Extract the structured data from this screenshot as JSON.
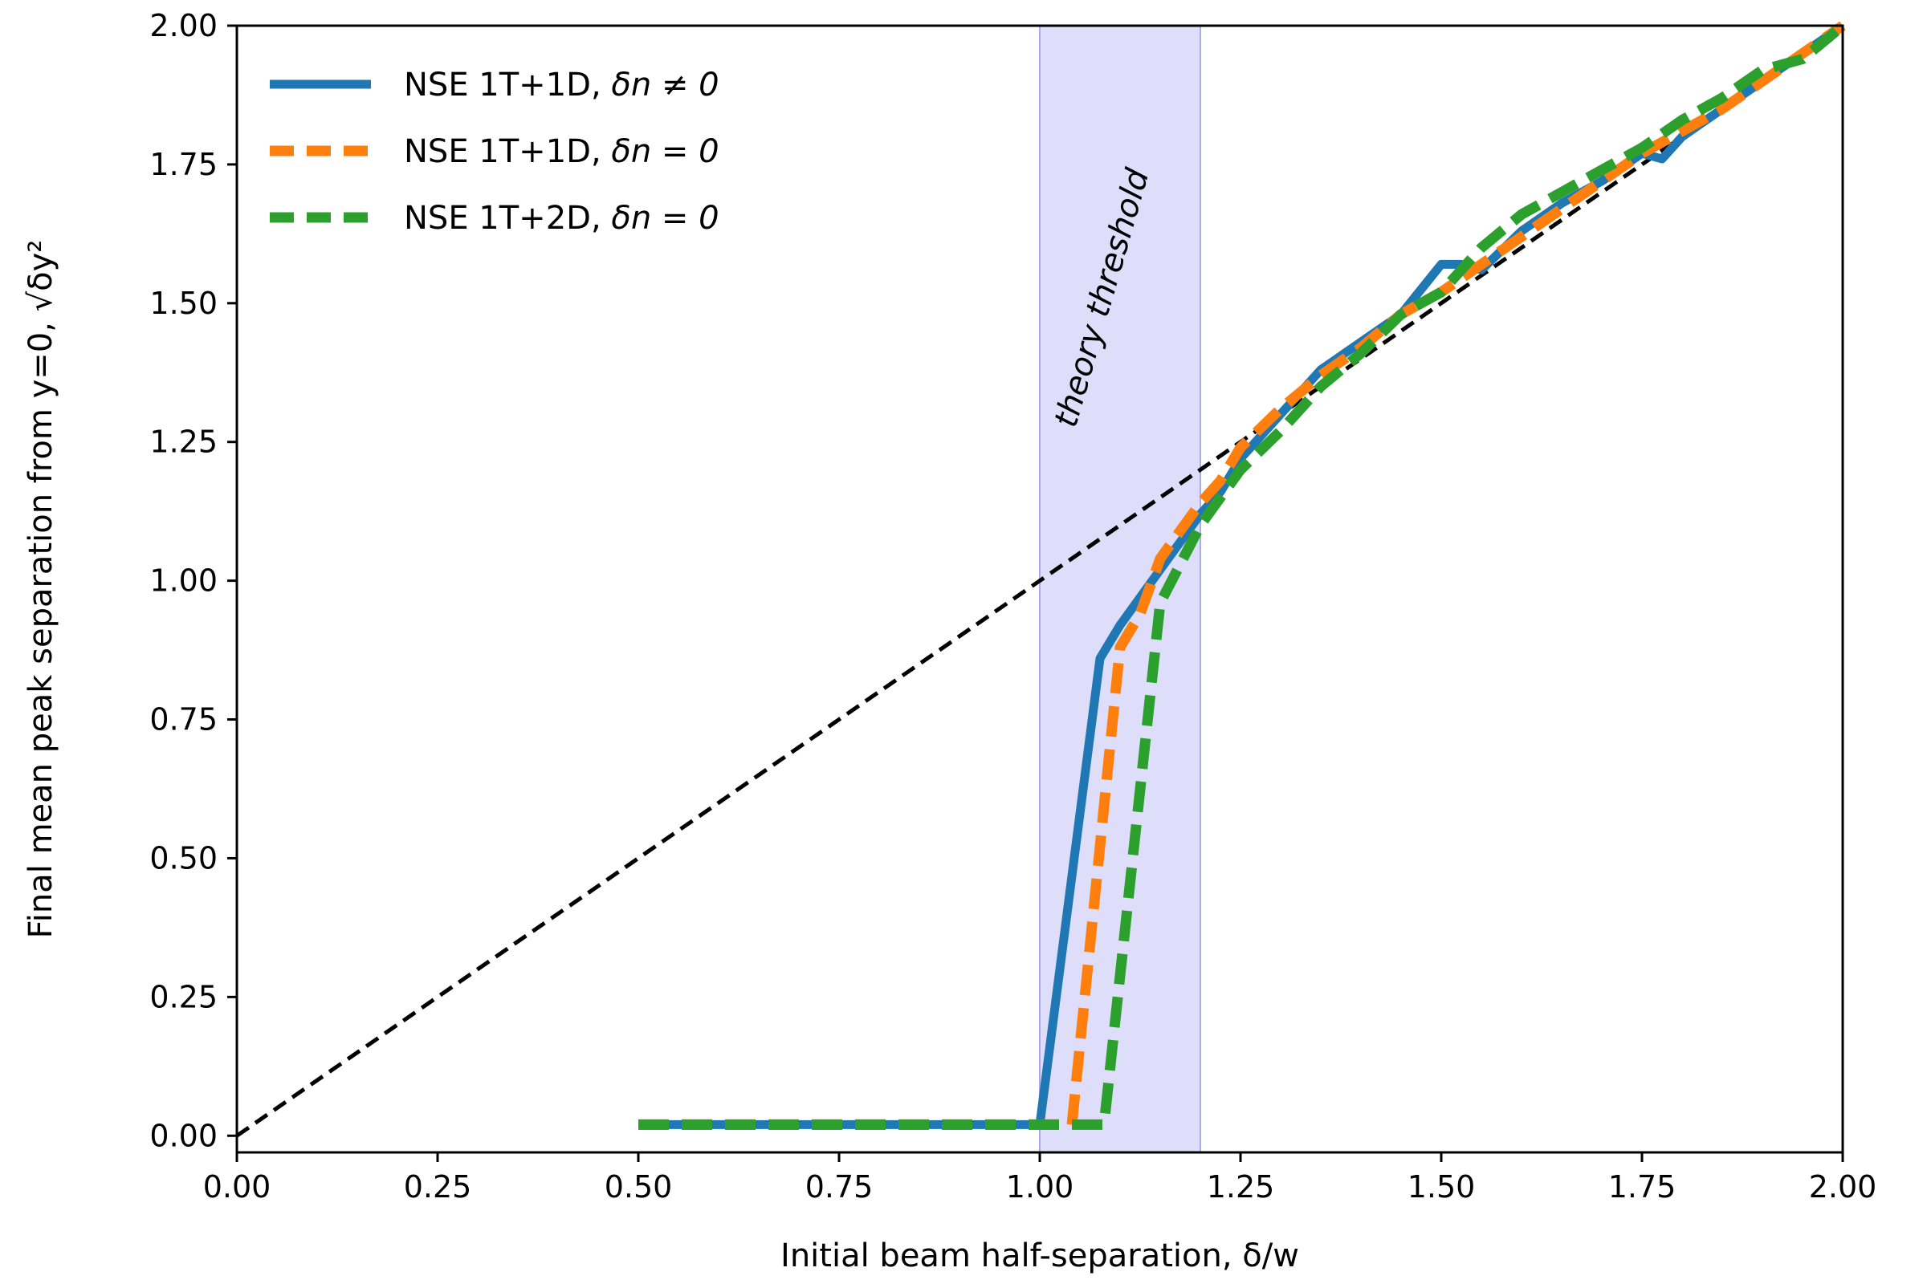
{
  "chart_data": {
    "type": "line",
    "title": "",
    "xlabel": "Initial beam half-separation, δ/w",
    "ylabel": "Final mean peak separation from y=0, √δy²",
    "xlim": [
      0.0,
      2.0
    ],
    "ylim": [
      0.0,
      2.0
    ],
    "x_ticks": [
      0.0,
      0.25,
      0.5,
      0.75,
      1.0,
      1.25,
      1.5,
      1.75,
      2.0
    ],
    "x_tick_labels": [
      "0.00",
      "0.25",
      "0.50",
      "0.75",
      "1.00",
      "1.25",
      "1.50",
      "1.75",
      "2.00"
    ],
    "y_ticks": [
      0.0,
      0.25,
      0.5,
      0.75,
      1.0,
      1.25,
      1.5,
      1.75,
      2.0
    ],
    "y_tick_labels": [
      "0.00",
      "0.25",
      "0.50",
      "0.75",
      "1.00",
      "1.25",
      "1.50",
      "1.75",
      "2.00"
    ],
    "grid": false,
    "legend_position": "top-left",
    "shaded_region": {
      "x_range": [
        1.0,
        1.2
      ],
      "color": "#c8c8f8",
      "label": "theory threshold"
    },
    "reference_line": {
      "name": "y = x",
      "color": "#000000",
      "x": [
        0.0,
        2.0
      ],
      "y": [
        0.0,
        2.0
      ]
    },
    "series": [
      {
        "name": "NSE 1T+1D, δn ≠ 0",
        "label_prefix": "NSE 1T+1D, ",
        "label_math": "δn ≠ 0",
        "color": "#1f77b4",
        "style": "solid",
        "x": [
          0.5,
          0.6,
          0.7,
          0.8,
          0.9,
          1.0,
          1.075,
          1.1,
          1.15,
          1.2,
          1.225,
          1.25,
          1.3,
          1.35,
          1.4,
          1.45,
          1.5,
          1.525,
          1.55,
          1.6,
          1.65,
          1.7,
          1.75,
          1.775,
          1.8,
          1.85,
          1.9,
          1.95,
          2.0
        ],
        "y": [
          0.02,
          0.02,
          0.02,
          0.02,
          0.02,
          0.02,
          0.86,
          0.92,
          1.02,
          1.12,
          1.16,
          1.22,
          1.3,
          1.38,
          1.43,
          1.48,
          1.57,
          1.57,
          1.56,
          1.63,
          1.68,
          1.72,
          1.77,
          1.76,
          1.8,
          1.85,
          1.9,
          1.95,
          2.0
        ]
      },
      {
        "name": "NSE 1T+1D, δn = 0",
        "label_prefix": "NSE 1T+1D, ",
        "label_math": "δn = 0",
        "color": "#ff7f0e",
        "style": "dashed",
        "x": [
          0.5,
          0.6,
          0.7,
          0.8,
          0.9,
          1.0,
          1.04,
          1.1,
          1.125,
          1.15,
          1.2,
          1.225,
          1.25,
          1.3,
          1.35,
          1.4,
          1.45,
          1.5,
          1.55,
          1.6,
          1.65,
          1.7,
          1.75,
          1.8,
          1.85,
          1.9,
          1.95,
          2.0
        ],
        "y": [
          0.02,
          0.02,
          0.02,
          0.02,
          0.02,
          0.02,
          0.02,
          0.88,
          0.94,
          1.04,
          1.14,
          1.18,
          1.24,
          1.31,
          1.37,
          1.42,
          1.48,
          1.52,
          1.57,
          1.62,
          1.67,
          1.72,
          1.77,
          1.81,
          1.85,
          1.9,
          1.95,
          2.0
        ]
      },
      {
        "name": "NSE 1T+2D, δn = 0",
        "label_prefix": "NSE 1T+2D, ",
        "label_math": "δn = 0",
        "color": "#2ca02c",
        "style": "dashed",
        "x": [
          0.5,
          0.6,
          0.7,
          0.8,
          0.9,
          1.0,
          1.05,
          1.08,
          1.15,
          1.2,
          1.25,
          1.3,
          1.35,
          1.4,
          1.45,
          1.5,
          1.55,
          1.6,
          1.65,
          1.7,
          1.75,
          1.8,
          1.85,
          1.9,
          1.95,
          2.0
        ],
        "y": [
          0.02,
          0.02,
          0.02,
          0.02,
          0.02,
          0.02,
          0.02,
          0.02,
          0.96,
          1.1,
          1.2,
          1.27,
          1.35,
          1.41,
          1.48,
          1.52,
          1.6,
          1.66,
          1.7,
          1.74,
          1.78,
          1.83,
          1.87,
          1.92,
          1.94,
          2.0
        ]
      }
    ]
  }
}
